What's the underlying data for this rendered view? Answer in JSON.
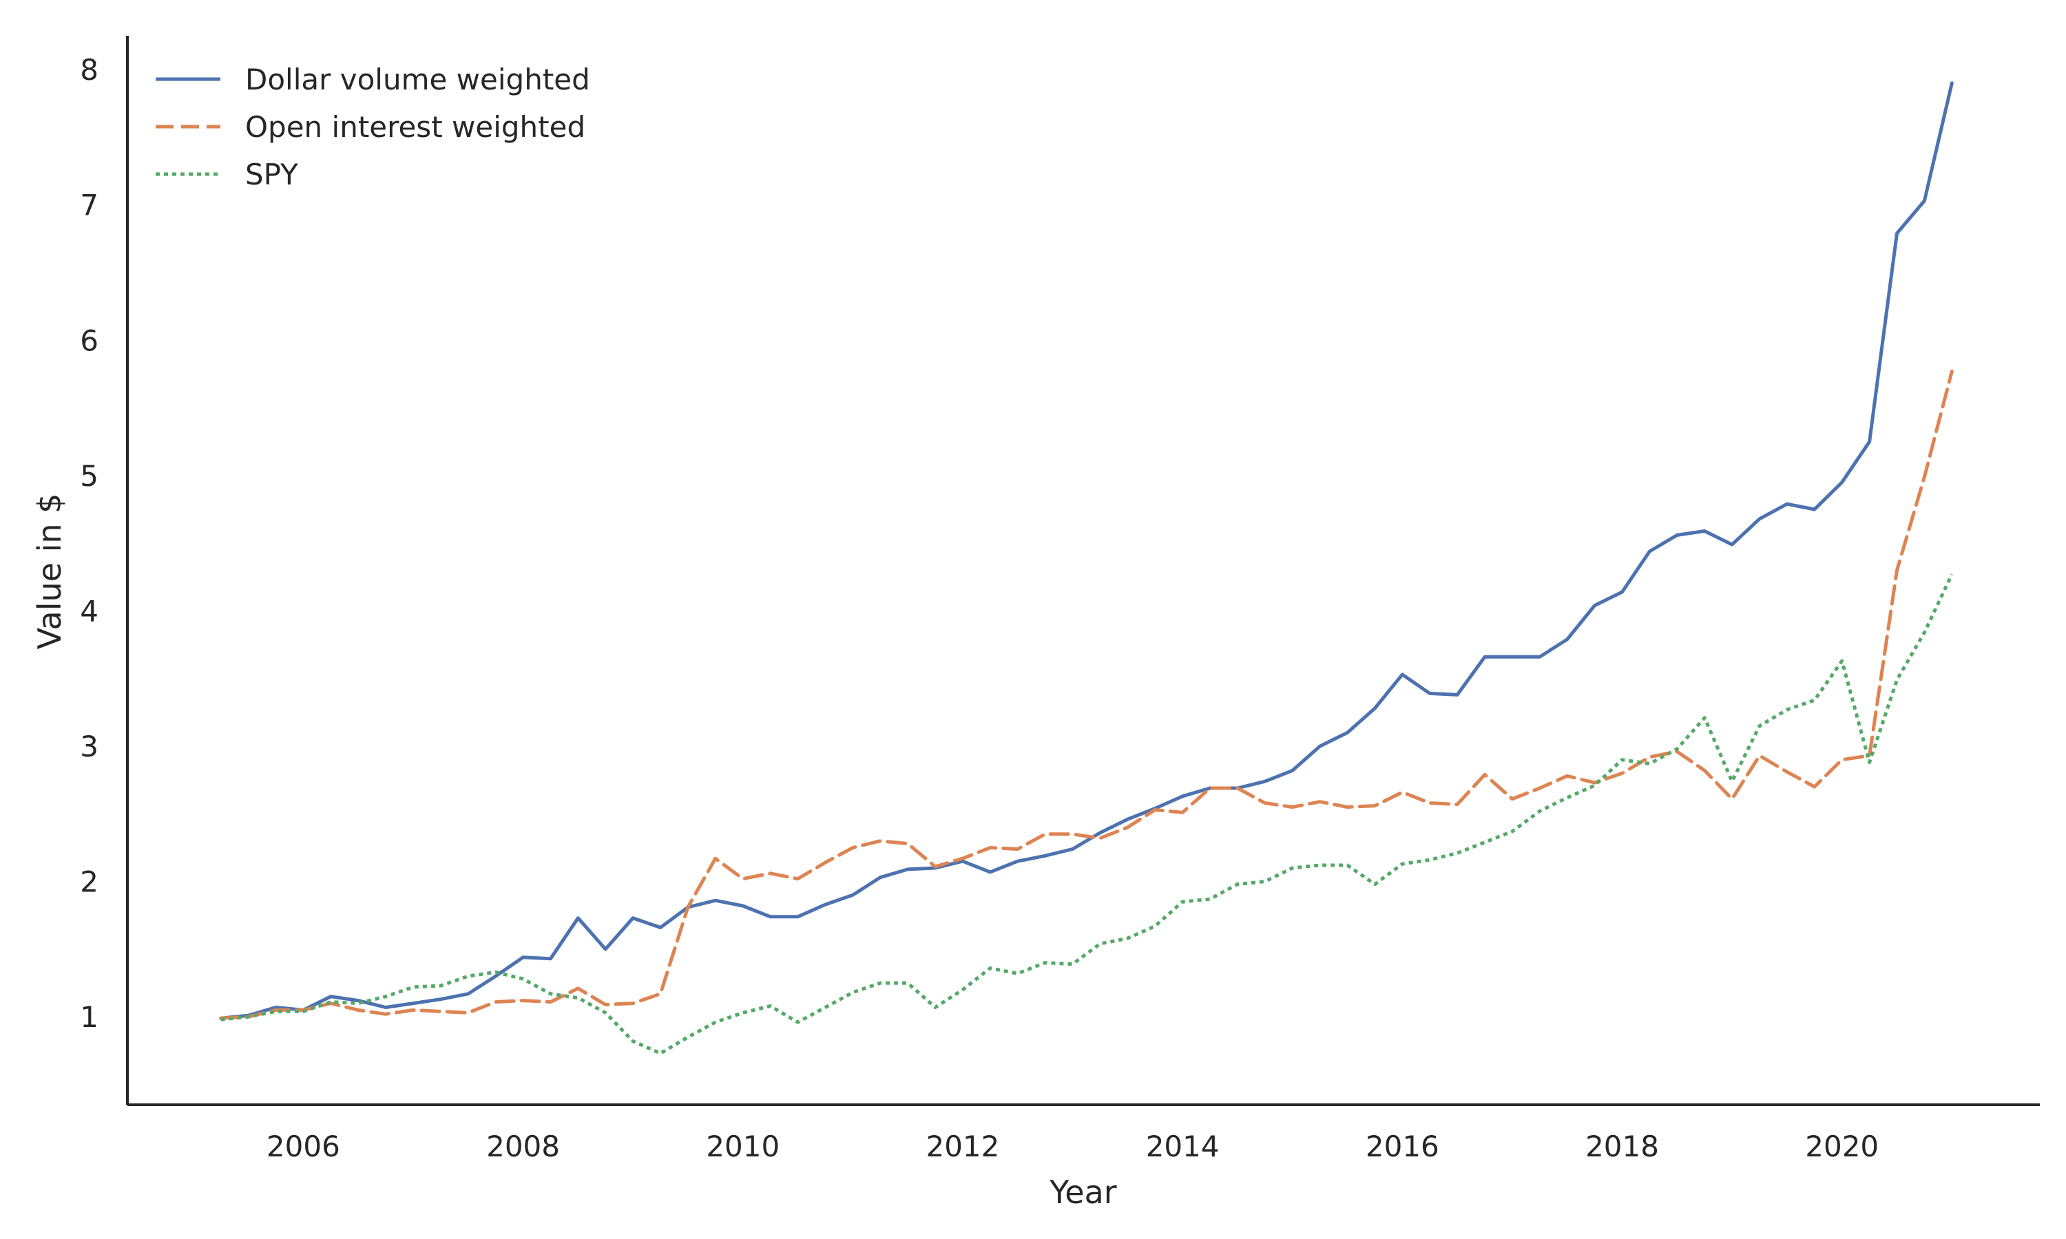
{
  "chart_data": {
    "type": "line",
    "title": "",
    "xlabel": "Year",
    "ylabel": "Value in $",
    "xlim": [
      2004.4,
      2021.8
    ],
    "ylim": [
      0.35,
      8.25
    ],
    "x_ticks": [
      2006,
      2008,
      2010,
      2012,
      2014,
      2016,
      2018,
      2020
    ],
    "y_ticks": [
      1,
      2,
      3,
      4,
      5,
      6,
      7,
      8
    ],
    "grid": false,
    "legend_position": "top-left",
    "x": [
      2005.25,
      2005.5,
      2005.75,
      2006.0,
      2006.25,
      2006.5,
      2006.75,
      2007.0,
      2007.25,
      2007.5,
      2007.75,
      2008.0,
      2008.25,
      2008.5,
      2008.75,
      2009.0,
      2009.25,
      2009.5,
      2009.75,
      2010.0,
      2010.25,
      2010.5,
      2010.75,
      2011.0,
      2011.25,
      2011.5,
      2011.75,
      2012.0,
      2012.25,
      2012.5,
      2012.75,
      2013.0,
      2013.25,
      2013.5,
      2013.75,
      2014.0,
      2014.25,
      2014.5,
      2014.75,
      2015.0,
      2015.25,
      2015.5,
      2015.75,
      2016.0,
      2016.25,
      2016.5,
      2016.75,
      2017.0,
      2017.25,
      2017.5,
      2017.75,
      2018.0,
      2018.25,
      2018.5,
      2018.75,
      2019.0,
      2019.25,
      2019.5,
      2019.75,
      2020.0,
      2020.25,
      2020.5,
      2020.75,
      2021.0
    ],
    "series": [
      {
        "name": "Dollar volume weighted",
        "color": "#4c72b0",
        "dash": "solid",
        "values": [
          0.99,
          1.01,
          1.07,
          1.05,
          1.15,
          1.12,
          1.07,
          1.1,
          1.13,
          1.17,
          1.3,
          1.44,
          1.43,
          1.73,
          1.5,
          1.73,
          1.66,
          1.81,
          1.86,
          1.82,
          1.74,
          1.74,
          1.83,
          1.9,
          2.03,
          2.09,
          2.1,
          2.15,
          2.07,
          2.15,
          2.19,
          2.24,
          2.36,
          2.46,
          2.54,
          2.63,
          2.69,
          2.69,
          2.74,
          2.82,
          3.0,
          3.1,
          3.28,
          3.53,
          3.39,
          3.38,
          3.66,
          3.66,
          3.66,
          3.79,
          4.04,
          4.14,
          4.44,
          4.56,
          4.59,
          4.49,
          4.68,
          4.79,
          4.75,
          4.95,
          5.25,
          6.79,
          7.03,
          7.9
        ]
      },
      {
        "name": "Open interest weighted",
        "color": "#dd8452",
        "dash": "dashed",
        "values": [
          0.99,
          1.0,
          1.05,
          1.05,
          1.1,
          1.05,
          1.02,
          1.05,
          1.04,
          1.03,
          1.11,
          1.12,
          1.11,
          1.21,
          1.09,
          1.1,
          1.17,
          1.81,
          2.17,
          2.02,
          2.06,
          2.02,
          2.14,
          2.25,
          2.3,
          2.28,
          2.11,
          2.17,
          2.25,
          2.24,
          2.35,
          2.35,
          2.32,
          2.4,
          2.53,
          2.51,
          2.69,
          2.69,
          2.58,
          2.55,
          2.59,
          2.55,
          2.56,
          2.66,
          2.58,
          2.57,
          2.79,
          2.61,
          2.69,
          2.78,
          2.73,
          2.8,
          2.92,
          2.96,
          2.82,
          2.61,
          2.93,
          2.81,
          2.7,
          2.9,
          2.93,
          4.3,
          4.99,
          5.77
        ]
      },
      {
        "name": "SPY",
        "color": "#55a868",
        "dash": "dotted",
        "values": [
          0.98,
          1.0,
          1.04,
          1.04,
          1.11,
          1.1,
          1.15,
          1.22,
          1.23,
          1.3,
          1.33,
          1.28,
          1.17,
          1.14,
          1.03,
          0.82,
          0.73,
          0.85,
          0.96,
          1.03,
          1.08,
          0.96,
          1.07,
          1.18,
          1.25,
          1.25,
          1.07,
          1.2,
          1.36,
          1.32,
          1.4,
          1.39,
          1.54,
          1.58,
          1.67,
          1.85,
          1.87,
          1.98,
          2.0,
          2.1,
          2.12,
          2.12,
          1.98,
          2.13,
          2.16,
          2.21,
          2.29,
          2.37,
          2.52,
          2.62,
          2.71,
          2.9,
          2.87,
          2.98,
          3.21,
          2.74,
          3.15,
          3.27,
          3.34,
          3.63,
          2.88,
          3.49,
          3.84,
          4.27
        ]
      }
    ]
  }
}
